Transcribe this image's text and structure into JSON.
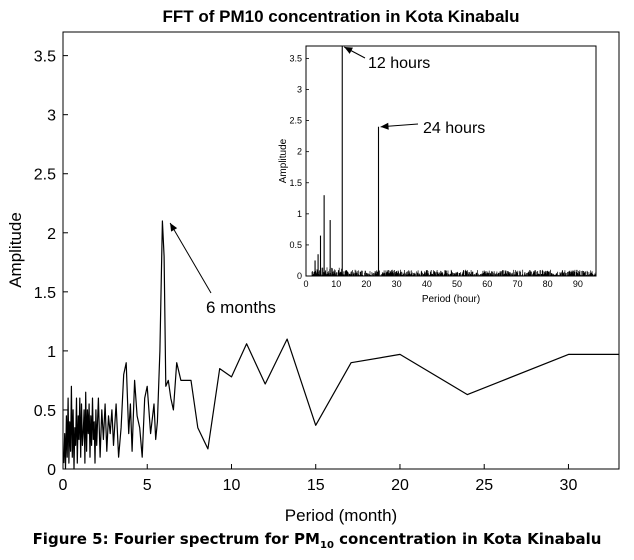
{
  "chart_data": [
    {
      "type": "line",
      "title": "FFT of PM10 concentration in Kota Kinabalu",
      "xlabel": "Period (month)",
      "ylabel": "Amplitude",
      "xlim": [
        0,
        33
      ],
      "ylim": [
        0,
        3.7
      ],
      "xticks": [
        "0",
        "5",
        "10",
        "15",
        "20",
        "25",
        "30"
      ],
      "yticks": [
        "0",
        "0.5",
        "1",
        "1.5",
        "2",
        "2.5",
        "3",
        "3.5"
      ],
      "grid": false,
      "series": [
        {
          "x": [
            0.05,
            0.1,
            0.15,
            0.2,
            0.25,
            0.3,
            0.35,
            0.4,
            0.45,
            0.5,
            0.55,
            0.6,
            0.65,
            0.7,
            0.75,
            0.8,
            0.85,
            0.9,
            0.95,
            1.0,
            1.05,
            1.1,
            1.15,
            1.2,
            1.25,
            1.3,
            1.35,
            1.4,
            1.45,
            1.5,
            1.55,
            1.6,
            1.65,
            1.7,
            1.75,
            1.8,
            1.85,
            1.9,
            1.95,
            2.0,
            2.1,
            2.2,
            2.3,
            2.4,
            2.5,
            2.6,
            2.7,
            2.8,
            2.9,
            3.0,
            3.15,
            3.3,
            3.45,
            3.6,
            3.75,
            3.9,
            4.0,
            4.1,
            4.25,
            4.4,
            4.55,
            4.7,
            4.85,
            5.0,
            5.2,
            5.4,
            5.5,
            5.6,
            5.75,
            5.9,
            6.0,
            6.1,
            6.25,
            6.4,
            6.55,
            6.75,
            7.0,
            7.3,
            7.6,
            8.0,
            8.6,
            9.3,
            10.0,
            10.9,
            12.0,
            13.3,
            15.0,
            17.1,
            20.0,
            24.0,
            30.0,
            33.0
          ],
          "y": [
            0.05,
            0.3,
            0.0,
            0.45,
            0.1,
            0.6,
            0.05,
            0.4,
            0.15,
            0.7,
            0.1,
            0.5,
            0.0,
            0.35,
            0.2,
            0.6,
            0.05,
            0.45,
            0.25,
            0.6,
            0.1,
            0.55,
            0.2,
            0.3,
            0.5,
            0.05,
            0.65,
            0.15,
            0.5,
            0.3,
            0.55,
            0.1,
            0.45,
            0.2,
            0.6,
            0.25,
            0.4,
            0.05,
            0.5,
            0.2,
            0.6,
            0.1,
            0.5,
            0.25,
            0.55,
            0.15,
            0.45,
            0.3,
            0.5,
            0.2,
            0.55,
            0.1,
            0.35,
            0.8,
            0.9,
            0.3,
            0.55,
            0.15,
            0.75,
            0.45,
            0.35,
            0.1,
            0.6,
            0.7,
            0.3,
            0.55,
            0.25,
            0.4,
            1.0,
            2.1,
            1.8,
            0.7,
            0.75,
            0.6,
            0.5,
            0.9,
            0.75,
            0.75,
            0.75,
            0.35,
            0.17,
            0.85,
            0.78,
            1.06,
            0.72,
            1.1,
            0.37,
            0.9,
            0.97,
            0.63,
            0.97,
            0.97
          ]
        }
      ],
      "annotations": [
        {
          "text": "6 months",
          "x": 6.0,
          "y": 2.1
        }
      ]
    },
    {
      "type": "line",
      "title": "",
      "xlabel": "Period (hour)",
      "ylabel": "Amplitude",
      "xlim": [
        0,
        96
      ],
      "ylim": [
        0,
        3.7
      ],
      "xticks": [
        "0",
        "10",
        "20",
        "30",
        "40",
        "50",
        "60",
        "70",
        "80",
        "90"
      ],
      "yticks": [
        "0",
        "0.5",
        "1",
        "1.5",
        "2",
        "2.5",
        "3",
        "3.5"
      ],
      "grid": false,
      "series": [
        {
          "peaks": [
            {
              "x": 3.0,
              "y": 0.25
            },
            {
              "x": 4.0,
              "y": 0.35
            },
            {
              "x": 4.8,
              "y": 0.65
            },
            {
              "x": 6.0,
              "y": 1.3
            },
            {
              "x": 8.0,
              "y": 0.9
            },
            {
              "x": 12.0,
              "y": 3.7
            },
            {
              "x": 24.0,
              "y": 2.4
            }
          ],
          "noise_level": 0.1
        }
      ],
      "annotations": [
        {
          "text": "12 hours",
          "x": 12.0,
          "y": 3.7
        },
        {
          "text": "24 hours",
          "x": 24.0,
          "y": 2.4
        }
      ]
    }
  ],
  "caption": {
    "prefix": "Figure 5: Fourier spectrum for PM",
    "sub": "10",
    "suffix": " concentration in Kota Kinabalu"
  }
}
